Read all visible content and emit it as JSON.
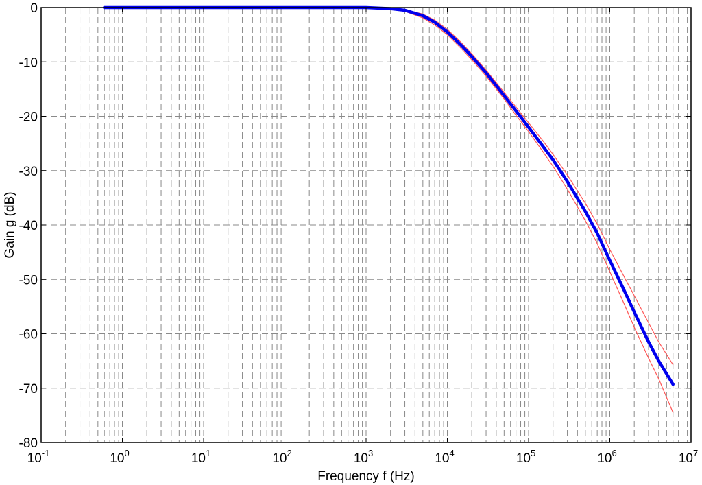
{
  "chart_data": {
    "type": "line",
    "title": "",
    "xlabel": "Frequency f (Hz)",
    "ylabel": "Gain g (dB)",
    "xscale": "log",
    "xlim": [
      0.1,
      10000000
    ],
    "ylim": [
      -80,
      0
    ],
    "grid": true,
    "grid_style": "dashed",
    "legend": "none",
    "x_ticks": [
      {
        "base": "10",
        "exp": "-1",
        "value": 0.1
      },
      {
        "base": "10",
        "exp": "0",
        "value": 1
      },
      {
        "base": "10",
        "exp": "1",
        "value": 10
      },
      {
        "base": "10",
        "exp": "2",
        "value": 100
      },
      {
        "base": "10",
        "exp": "3",
        "value": 1000
      },
      {
        "base": "10",
        "exp": "4",
        "value": 10000
      },
      {
        "base": "10",
        "exp": "5",
        "value": 100000
      },
      {
        "base": "10",
        "exp": "6",
        "value": 1000000
      },
      {
        "base": "10",
        "exp": "7",
        "value": 10000000
      }
    ],
    "y_ticks": [
      {
        "label": "0",
        "value": 0
      },
      {
        "label": "-10",
        "value": -10
      },
      {
        "label": "-20",
        "value": -20
      },
      {
        "label": "-30",
        "value": -30
      },
      {
        "label": "-40",
        "value": -40
      },
      {
        "label": "-50",
        "value": -50
      },
      {
        "label": "-60",
        "value": -60
      },
      {
        "label": "-70",
        "value": -70
      },
      {
        "label": "-80",
        "value": -80
      }
    ],
    "series": [
      {
        "color": "#0000ee",
        "x": [
          0.6,
          1,
          10,
          100,
          1000,
          2000,
          3000,
          5000,
          7000,
          10000,
          15000,
          20000,
          30000,
          50000,
          70000,
          100000,
          150000,
          200000,
          300000,
          500000,
          700000,
          1000000,
          1500000,
          2000000,
          3000000,
          4000000,
          6000000
        ],
        "y": [
          0,
          0,
          0,
          0,
          0,
          -0.2,
          -0.5,
          -1.5,
          -2.7,
          -4.5,
          -7,
          -9,
          -12,
          -16.2,
          -19,
          -22,
          -25.5,
          -28,
          -32,
          -37.5,
          -41.5,
          -46.5,
          -52,
          -56,
          -61.5,
          -65,
          -69.3
        ]
      },
      {
        "color": "#ff5555",
        "x": [
          0.6,
          1,
          10,
          100,
          1000,
          2000,
          3000,
          5000,
          7000,
          10000,
          15000,
          20000,
          30000,
          50000,
          70000,
          100000,
          150000,
          200000,
          300000,
          500000,
          700000,
          1000000,
          1500000,
          2000000,
          3000000,
          4000000,
          6000000
        ],
        "y": [
          0,
          0,
          0,
          0,
          0,
          -0.1,
          -0.4,
          -1.2,
          -2.3,
          -4,
          -6.5,
          -8.5,
          -11.5,
          -15.6,
          -18.3,
          -21.2,
          -24.5,
          -27,
          -30.8,
          -36,
          -39.8,
          -44.5,
          -49.5,
          -53,
          -58,
          -61.5,
          -65.7
        ]
      },
      {
        "color": "#ff5555",
        "x": [
          0.6,
          1,
          10,
          100,
          1000,
          2000,
          3000,
          5000,
          7000,
          10000,
          15000,
          20000,
          30000,
          50000,
          70000,
          100000,
          150000,
          200000,
          300000,
          500000,
          700000,
          1000000,
          1500000,
          2000000,
          3000000,
          4000000,
          6000000
        ],
        "y": [
          0,
          0,
          0,
          0,
          0,
          -0.3,
          -0.7,
          -1.9,
          -3.2,
          -5,
          -7.6,
          -9.6,
          -12.6,
          -16.8,
          -19.8,
          -22.8,
          -26.5,
          -29.2,
          -33.4,
          -39.2,
          -43.4,
          -48.6,
          -54.5,
          -58.8,
          -64.5,
          -68.3,
          -74.5
        ]
      }
    ]
  }
}
